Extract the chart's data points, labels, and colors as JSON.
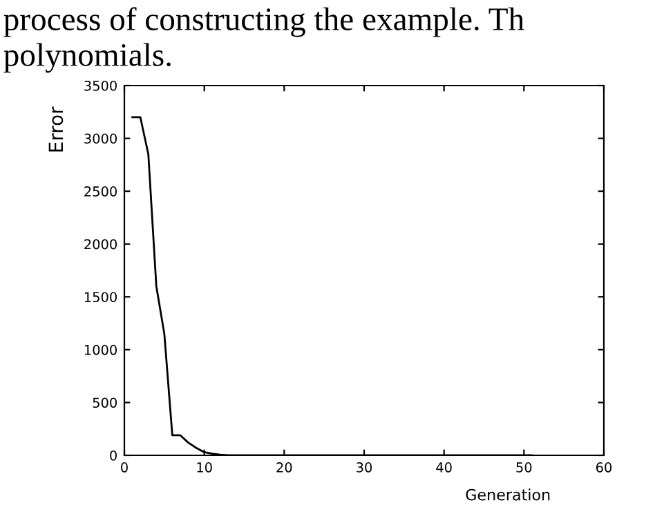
{
  "chart_data": {
    "type": "line",
    "xlabel": "Generation",
    "ylabel": "Error",
    "annotations": [
      "process of constructing the example. Th",
      "polynomials."
    ],
    "x": [
      1,
      2,
      3,
      4,
      5,
      6,
      7,
      8,
      9,
      10,
      11,
      12,
      13,
      51
    ],
    "series": [
      {
        "color": "#000000",
        "values": [
          3200,
          3200,
          2850,
          1600,
          1150,
          190,
          190,
          120,
          70,
          30,
          15,
          5,
          0,
          0
        ]
      }
    ],
    "xlim": [
      0,
      60
    ],
    "xticks": [
      0,
      10,
      20,
      30,
      40,
      50,
      60
    ],
    "ylim": [
      0,
      3500
    ],
    "yticks": [
      0,
      500,
      1000,
      1500,
      2000,
      2500,
      3000,
      3500
    ],
    "grid": false,
    "legend": false,
    "marker": "none",
    "line_style": "solid"
  }
}
